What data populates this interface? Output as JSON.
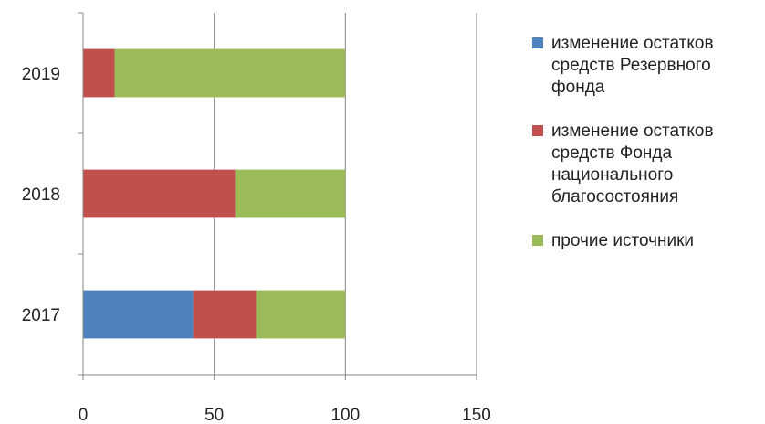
{
  "chart_data": {
    "type": "bar",
    "orientation": "horizontal",
    "stacked": true,
    "categories": [
      "2017",
      "2018",
      "2019"
    ],
    "series": [
      {
        "name": "изменение остатков средств Резервного фонда",
        "color": "#4F81BD",
        "values": [
          42,
          0,
          0
        ]
      },
      {
        "name": "изменение остатков средств Фонда национального благосостояния",
        "color": "#C0504D",
        "values": [
          24,
          58,
          12
        ]
      },
      {
        "name": "прочие источники",
        "color": "#9BBB59",
        "values": [
          34,
          42,
          88
        ]
      }
    ],
    "xlim": [
      0,
      150
    ],
    "x_ticks": [
      "0",
      "50",
      "100",
      "150"
    ],
    "grid": "vertical",
    "legend_position": "right",
    "title": "",
    "xlabel": "",
    "ylabel": ""
  }
}
